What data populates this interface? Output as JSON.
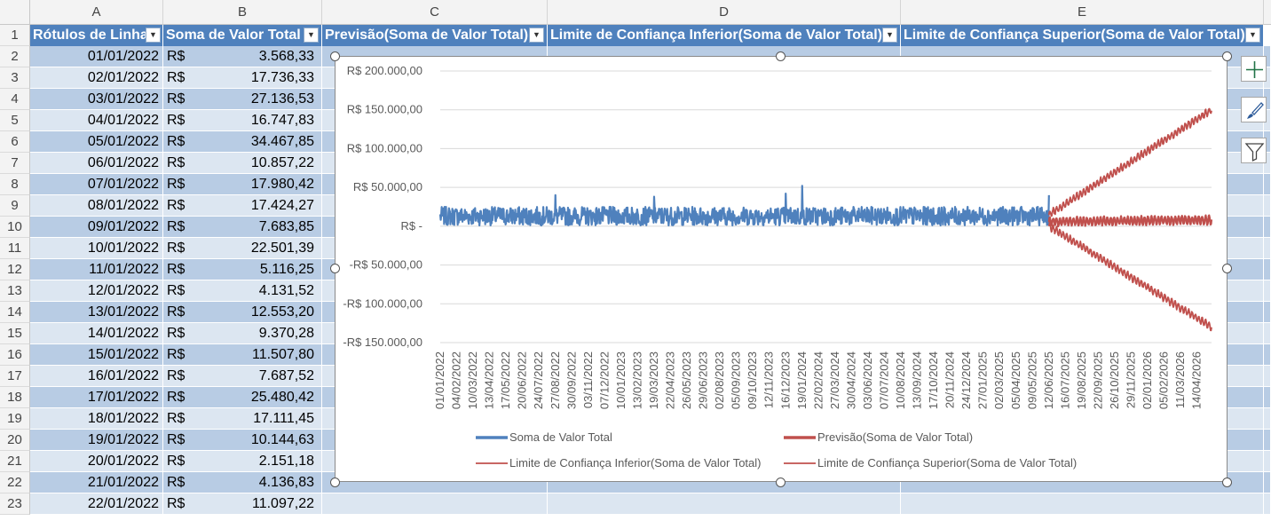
{
  "columns": [
    "A",
    "B",
    "C",
    "D",
    "E"
  ],
  "header_row": {
    "row_number": "1",
    "a": "Rótulos de Linha",
    "b": "Soma de Valor Total",
    "c": "Previsão(Soma de Valor Total)",
    "d": "Limite de Confiança Inferior(Soma de Valor Total)",
    "e": "Limite de Confiança Superior(Soma de Valor Total)",
    "dropdown_icon": "filter-dropdown-arrow"
  },
  "rows": [
    {
      "n": "2",
      "date": "01/01/2022",
      "cur": "R$",
      "val": "3.568,33"
    },
    {
      "n": "3",
      "date": "02/01/2022",
      "cur": "R$",
      "val": "17.736,33"
    },
    {
      "n": "4",
      "date": "03/01/2022",
      "cur": "R$",
      "val": "27.136,53"
    },
    {
      "n": "5",
      "date": "04/01/2022",
      "cur": "R$",
      "val": "16.747,83"
    },
    {
      "n": "6",
      "date": "05/01/2022",
      "cur": "R$",
      "val": "34.467,85"
    },
    {
      "n": "7",
      "date": "06/01/2022",
      "cur": "R$",
      "val": "10.857,22"
    },
    {
      "n": "8",
      "date": "07/01/2022",
      "cur": "R$",
      "val": "17.980,42"
    },
    {
      "n": "9",
      "date": "08/01/2022",
      "cur": "R$",
      "val": "17.424,27"
    },
    {
      "n": "10",
      "date": "09/01/2022",
      "cur": "R$",
      "val": "7.683,85"
    },
    {
      "n": "11",
      "date": "10/01/2022",
      "cur": "R$",
      "val": "22.501,39"
    },
    {
      "n": "12",
      "date": "11/01/2022",
      "cur": "R$",
      "val": "5.116,25"
    },
    {
      "n": "13",
      "date": "12/01/2022",
      "cur": "R$",
      "val": "4.131,52"
    },
    {
      "n": "14",
      "date": "13/01/2022",
      "cur": "R$",
      "val": "12.553,20"
    },
    {
      "n": "15",
      "date": "14/01/2022",
      "cur": "R$",
      "val": "9.370,28"
    },
    {
      "n": "16",
      "date": "15/01/2022",
      "cur": "R$",
      "val": "11.507,80"
    },
    {
      "n": "17",
      "date": "16/01/2022",
      "cur": "R$",
      "val": "7.687,52"
    },
    {
      "n": "18",
      "date": "17/01/2022",
      "cur": "R$",
      "val": "25.480,42"
    },
    {
      "n": "19",
      "date": "18/01/2022",
      "cur": "R$",
      "val": "17.111,45"
    },
    {
      "n": "20",
      "date": "19/01/2022",
      "cur": "R$",
      "val": "10.144,63"
    },
    {
      "n": "21",
      "date": "20/01/2022",
      "cur": "R$",
      "val": "2.151,18"
    },
    {
      "n": "22",
      "date": "21/01/2022",
      "cur": "R$",
      "val": "4.136,83"
    },
    {
      "n": "23",
      "date": "22/01/2022",
      "cur": "R$",
      "val": "11.097,22"
    }
  ],
  "side_buttons": [
    {
      "icon": "plus-icon"
    },
    {
      "icon": "brush-icon"
    },
    {
      "icon": "filter-icon"
    }
  ],
  "colors": {
    "header_blue": "#4f81bd",
    "band_dark": "#b8cce4",
    "band_light": "#dce6f1",
    "series_actual": "#4f81bd",
    "series_forecast": "#c0504d"
  },
  "chart_data": {
    "type": "line",
    "ylim": [
      -150000,
      200000
    ],
    "y_ticks": [
      {
        "value": 200000,
        "label": "R$ 200.000,00"
      },
      {
        "value": 150000,
        "label": "R$ 150.000,00"
      },
      {
        "value": 100000,
        "label": "R$ 100.000,00"
      },
      {
        "value": 50000,
        "label": "R$ 50.000,00"
      },
      {
        "value": 0,
        "label": "R$ -"
      },
      {
        "value": -50000,
        "label": "-R$ 50.000,00"
      },
      {
        "value": -100000,
        "label": "-R$ 100.000,00"
      },
      {
        "value": -150000,
        "label": "-R$ 150.000,00"
      }
    ],
    "x_range": [
      "01/01/2022",
      "14/05/2026"
    ],
    "forecast_start": "12/06/2025",
    "x_tick_labels": [
      "01/01/2022",
      "04/02/2022",
      "10/03/2022",
      "13/04/2022",
      "17/05/2022",
      "20/06/2022",
      "24/07/2022",
      "27/08/2022",
      "30/09/2022",
      "03/11/2022",
      "07/12/2022",
      "10/01/2023",
      "13/02/2023",
      "19/03/2023",
      "22/04/2023",
      "26/05/2023",
      "29/06/2023",
      "02/08/2023",
      "05/09/2023",
      "09/10/2023",
      "12/11/2023",
      "16/12/2023",
      "19/01/2024",
      "22/02/2024",
      "27/03/2024",
      "30/04/2024",
      "03/06/2024",
      "07/07/2024",
      "10/08/2024",
      "13/09/2024",
      "17/10/2024",
      "20/11/2024",
      "24/12/2024",
      "27/01/2025",
      "02/03/2025",
      "05/04/2025",
      "09/05/2025",
      "12/06/2025",
      "16/07/2025",
      "19/08/2025",
      "22/09/2025",
      "26/10/2025",
      "29/11/2025",
      "02/01/2026",
      "05/02/2026",
      "11/03/2026",
      "14/04/2026"
    ],
    "series": [
      {
        "name": "Soma de Valor Total",
        "color": "#4f81bd",
        "level": 13000,
        "amplitude": 12000,
        "peaks": [
          {
            "date": "27/08/2022",
            "value": 40000
          },
          {
            "date": "19/03/2023",
            "value": 38000
          },
          {
            "date": "16/12/2023",
            "value": 42000
          },
          {
            "date": "19/01/2024",
            "value": 52000
          },
          {
            "date": "12/06/2025",
            "value": 40000
          }
        ]
      },
      {
        "name": "Previsão(Soma de Valor Total)",
        "color": "#c0504d",
        "start_value": 6000,
        "end_value": 8000
      },
      {
        "name": "Limite de Confiança Inferior(Soma de Valor Total)",
        "color": "#c0504d",
        "start_value": 0,
        "end_value": -130000
      },
      {
        "name": "Limite de Confiança Superior(Soma de Valor Total)",
        "color": "#c0504d",
        "start_value": 15000,
        "end_value": 150000
      }
    ],
    "legend": {
      "placement": "bottom",
      "entries": [
        "Soma de Valor Total",
        "Previsão(Soma de Valor Total)",
        "Limite de Confiança Inferior(Soma de Valor Total)",
        "Limite de Confiança Superior(Soma de Valor Total)"
      ]
    },
    "grid": true
  }
}
